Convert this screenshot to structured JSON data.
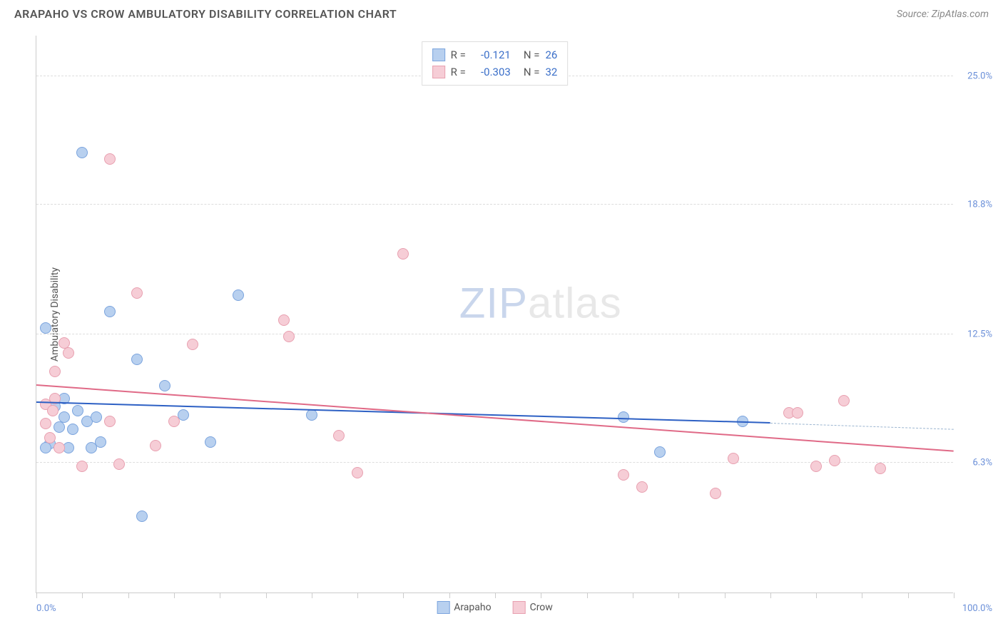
{
  "title": "ARAPAHO VS CROW AMBULATORY DISABILITY CORRELATION CHART",
  "source": "Source: ZipAtlas.com",
  "yaxis_title": "Ambulatory Disability",
  "watermark": {
    "part1": "ZIP",
    "part2": "atlas"
  },
  "chart": {
    "type": "scatter",
    "xlim": [
      0,
      100
    ],
    "ylim": [
      0,
      27
    ],
    "background_color": "#ffffff",
    "grid_color": "#dddddd",
    "yticks": [
      {
        "value": 6.3,
        "label": "6.3%"
      },
      {
        "value": 12.5,
        "label": "12.5%"
      },
      {
        "value": 18.8,
        "label": "18.8%"
      },
      {
        "value": 25.0,
        "label": "25.0%"
      }
    ],
    "xticks_minor": [
      0,
      5,
      10,
      15,
      20,
      25,
      30,
      35,
      40,
      45,
      50,
      55,
      60,
      65,
      70,
      75,
      80,
      85,
      90,
      95,
      100
    ],
    "xlabel_min": "0.0%",
    "xlabel_max": "100.0%",
    "point_radius": 8,
    "point_border_width": 1,
    "series": [
      {
        "name": "Arapaho",
        "fill_color": "#b8d0ef",
        "stroke_color": "#7ba4de",
        "line_color": "#2d60c4",
        "r_value": "-0.121",
        "n_value": "26",
        "trend": {
          "x1": 0,
          "y1": 9.2,
          "x2": 80,
          "y2": 8.2,
          "dashed_to_x": 100,
          "dashed_to_y": 7.9
        },
        "points": [
          {
            "x": 1,
            "y": 12.8
          },
          {
            "x": 5,
            "y": 21.3
          },
          {
            "x": 2,
            "y": 9.0
          },
          {
            "x": 3,
            "y": 8.5
          },
          {
            "x": 4,
            "y": 7.9
          },
          {
            "x": 1.5,
            "y": 7.2
          },
          {
            "x": 3.5,
            "y": 7.0
          },
          {
            "x": 5.5,
            "y": 8.3
          },
          {
            "x": 6,
            "y": 7.0
          },
          {
            "x": 6.5,
            "y": 8.5
          },
          {
            "x": 8,
            "y": 13.6
          },
          {
            "x": 11,
            "y": 11.3
          },
          {
            "x": 11.5,
            "y": 3.7
          },
          {
            "x": 14,
            "y": 10.0
          },
          {
            "x": 16,
            "y": 8.6
          },
          {
            "x": 19,
            "y": 7.3
          },
          {
            "x": 22,
            "y": 14.4
          },
          {
            "x": 30,
            "y": 8.6
          },
          {
            "x": 64,
            "y": 8.5
          },
          {
            "x": 68,
            "y": 6.8
          },
          {
            "x": 77,
            "y": 8.3
          },
          {
            "x": 2.5,
            "y": 8.0
          },
          {
            "x": 4.5,
            "y": 8.8
          },
          {
            "x": 1,
            "y": 7.0
          },
          {
            "x": 3,
            "y": 9.4
          },
          {
            "x": 7,
            "y": 7.3
          }
        ]
      },
      {
        "name": "Crow",
        "fill_color": "#f6cdd6",
        "stroke_color": "#e8a0b0",
        "line_color": "#e06a87",
        "r_value": "-0.303",
        "n_value": "32",
        "trend": {
          "x1": 0,
          "y1": 10.0,
          "x2": 100,
          "y2": 6.8
        },
        "points": [
          {
            "x": 8,
            "y": 21.0
          },
          {
            "x": 2,
            "y": 10.7
          },
          {
            "x": 3,
            "y": 12.1
          },
          {
            "x": 3.5,
            "y": 11.6
          },
          {
            "x": 2,
            "y": 9.4
          },
          {
            "x": 1,
            "y": 9.1
          },
          {
            "x": 1.5,
            "y": 7.5
          },
          {
            "x": 1,
            "y": 8.2
          },
          {
            "x": 2.5,
            "y": 7.0
          },
          {
            "x": 1.8,
            "y": 8.8
          },
          {
            "x": 5,
            "y": 6.1
          },
          {
            "x": 8,
            "y": 8.3
          },
          {
            "x": 9,
            "y": 6.2
          },
          {
            "x": 11,
            "y": 14.5
          },
          {
            "x": 13,
            "y": 7.1
          },
          {
            "x": 15,
            "y": 8.3
          },
          {
            "x": 17,
            "y": 12.0
          },
          {
            "x": 27,
            "y": 13.2
          },
          {
            "x": 27.5,
            "y": 12.4
          },
          {
            "x": 33,
            "y": 7.6
          },
          {
            "x": 35,
            "y": 5.8
          },
          {
            "x": 40,
            "y": 16.4
          },
          {
            "x": 64,
            "y": 5.7
          },
          {
            "x": 66,
            "y": 5.1
          },
          {
            "x": 74,
            "y": 4.8
          },
          {
            "x": 76,
            "y": 6.5
          },
          {
            "x": 82,
            "y": 8.7
          },
          {
            "x": 83,
            "y": 8.7
          },
          {
            "x": 85,
            "y": 6.1
          },
          {
            "x": 87,
            "y": 6.4
          },
          {
            "x": 88,
            "y": 9.3
          },
          {
            "x": 92,
            "y": 6.0
          }
        ]
      }
    ]
  },
  "bottom_legend": [
    {
      "label": "Arapaho",
      "fill": "#b8d0ef",
      "stroke": "#7ba4de"
    },
    {
      "label": "Crow",
      "fill": "#f6cdd6",
      "stroke": "#e8a0b0"
    }
  ]
}
